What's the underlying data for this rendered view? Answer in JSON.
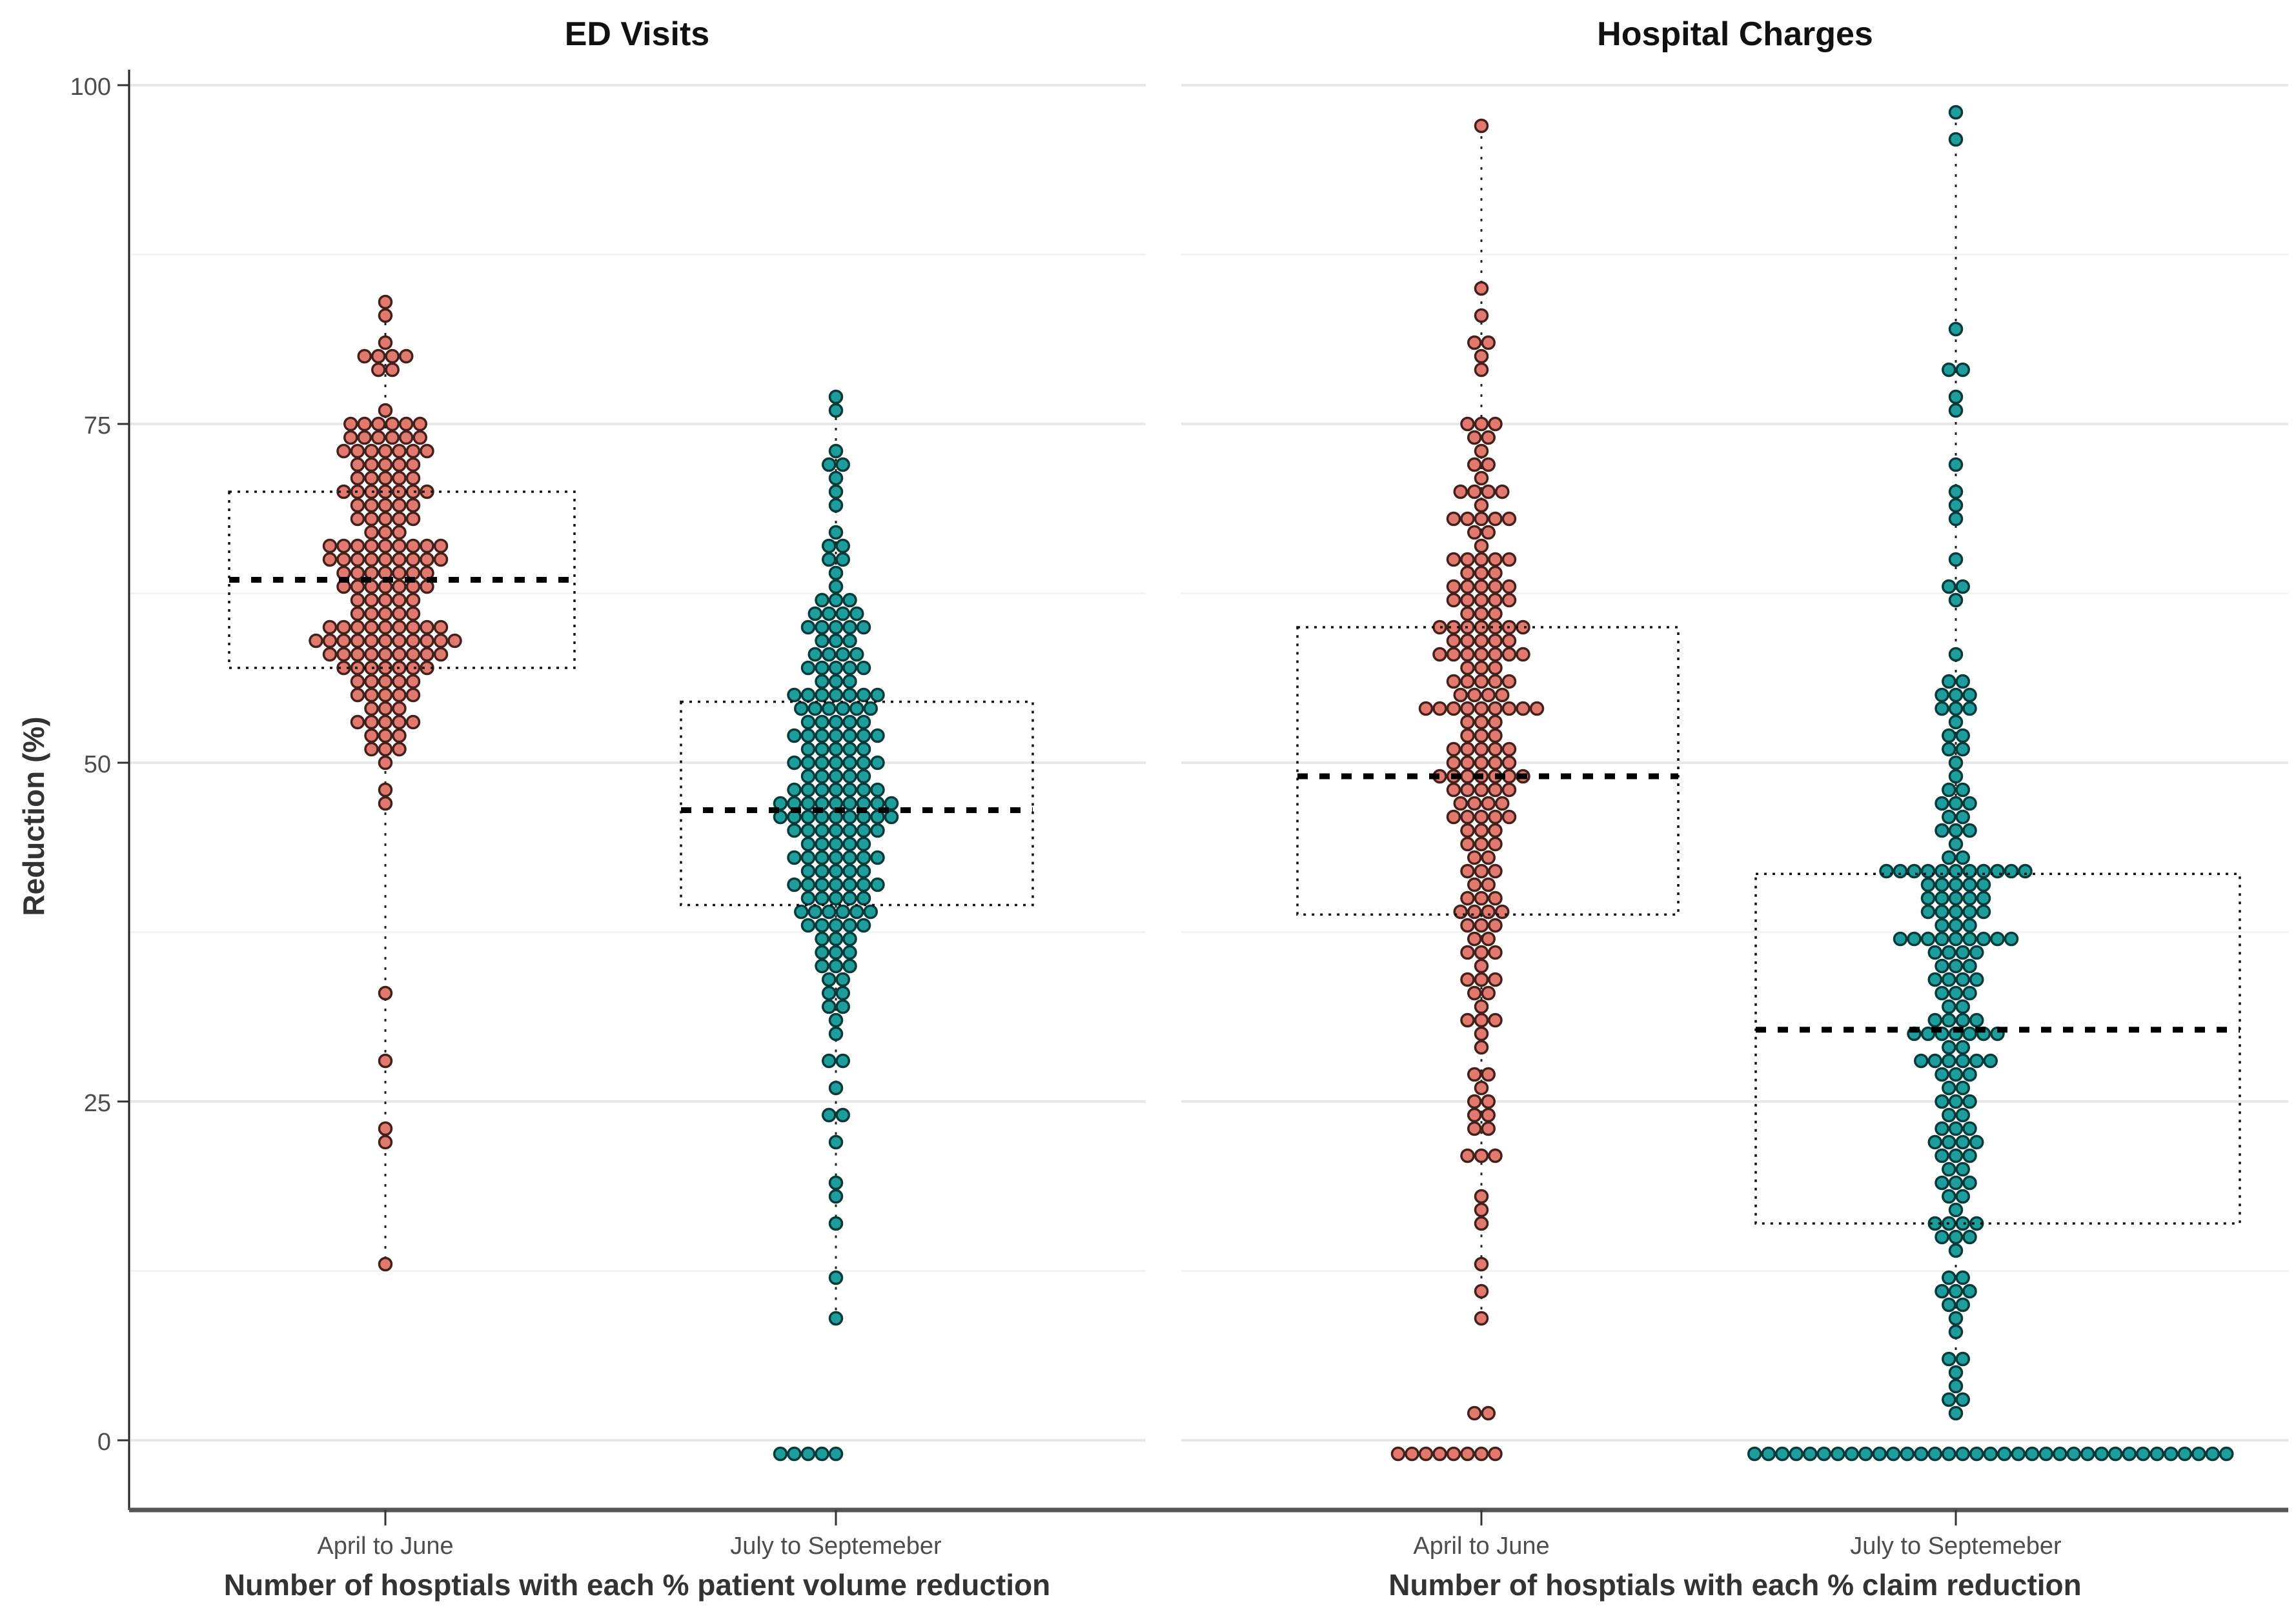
{
  "chart_data": {
    "type": "scatter",
    "subtype": "stacked-dotplot-with-boxplot",
    "y_axis": {
      "label": "Reduction (%)",
      "ticks": [
        "0",
        "25",
        "50",
        "75",
        "100"
      ],
      "tick_values": [
        0,
        25,
        50,
        75,
        100
      ],
      "minor_gridlines": [
        12.5,
        37.5,
        62.5,
        87.5
      ],
      "range": [
        -6,
        104
      ],
      "grid": "on"
    },
    "colors": {
      "april_fill": "#E2796E",
      "april_stroke": "#42201C",
      "july_fill": "#1D9E9C",
      "july_stroke": "#073A38",
      "box_stroke": "#111111",
      "median_stroke": "#000000",
      "axis_line": "#555555",
      "major_grid": "#e8e8e8",
      "minor_grid": "#f3f3f3"
    },
    "panels": [
      {
        "title": "ED Visits",
        "x_label": "Number of hosptials with each % patient volume reduction",
        "groups": [
          {
            "label": "April to June",
            "fill": "#E2796E",
            "stroke": "#42201C",
            "box": {
              "q1": 57,
              "median": 63.5,
              "q3": 70
            },
            "whisker": {
              "min": 13,
              "max": 84
            },
            "rows": [
              [
                84,
                1
              ],
              [
                83,
                1
              ],
              [
                81,
                1
              ],
              [
                80,
                4
              ],
              [
                79,
                2
              ],
              [
                76,
                1
              ],
              [
                75,
                6
              ],
              [
                74,
                6
              ],
              [
                73,
                7
              ],
              [
                72,
                5
              ],
              [
                71,
                5
              ],
              [
                70,
                7
              ],
              [
                69,
                5
              ],
              [
                68,
                5
              ],
              [
                67,
                3
              ],
              [
                66,
                9
              ],
              [
                65,
                9
              ],
              [
                64,
                7
              ],
              [
                63,
                7
              ],
              [
                62,
                5
              ],
              [
                61,
                5
              ],
              [
                60,
                9
              ],
              [
                59,
                11
              ],
              [
                58,
                9
              ],
              [
                57,
                7
              ],
              [
                56,
                5
              ],
              [
                55,
                5
              ],
              [
                54,
                3
              ],
              [
                53,
                5
              ],
              [
                52,
                3
              ],
              [
                51,
                3
              ],
              [
                50,
                1
              ],
              [
                48,
                1
              ],
              [
                47,
                1
              ],
              [
                33,
                1
              ],
              [
                28,
                1
              ],
              [
                23,
                1
              ],
              [
                22,
                1
              ],
              [
                13,
                1
              ]
            ]
          },
          {
            "label": "July to Septemeber",
            "fill": "#1D9E9C",
            "stroke": "#073A38",
            "box": {
              "q1": 39.5,
              "median": 46.5,
              "q3": 54.5
            },
            "whisker": {
              "min": 9,
              "max": 77
            },
            "rows": [
              [
                77,
                1
              ],
              [
                76,
                1
              ],
              [
                73,
                1
              ],
              [
                72,
                2
              ],
              [
                71,
                1
              ],
              [
                70,
                1
              ],
              [
                69,
                1
              ],
              [
                67,
                1
              ],
              [
                66,
                2
              ],
              [
                65,
                2
              ],
              [
                64,
                1
              ],
              [
                63,
                1
              ],
              [
                62,
                3
              ],
              [
                61,
                4
              ],
              [
                60,
                5
              ],
              [
                59,
                3
              ],
              [
                58,
                4
              ],
              [
                57,
                5
              ],
              [
                56,
                3
              ],
              [
                55,
                7
              ],
              [
                54,
                6
              ],
              [
                53,
                5
              ],
              [
                52,
                7
              ],
              [
                51,
                5
              ],
              [
                50,
                7
              ],
              [
                49,
                5
              ],
              [
                48,
                7
              ],
              [
                47,
                9
              ],
              [
                46,
                9
              ],
              [
                45,
                7
              ],
              [
                44,
                5
              ],
              [
                43,
                7
              ],
              [
                42,
                5
              ],
              [
                41,
                7
              ],
              [
                40,
                5
              ],
              [
                39,
                6
              ],
              [
                38,
                5
              ],
              [
                37,
                3
              ],
              [
                36,
                3
              ],
              [
                35,
                3
              ],
              [
                34,
                2
              ],
              [
                33,
                2
              ],
              [
                32,
                2
              ],
              [
                31,
                1
              ],
              [
                30,
                1
              ],
              [
                28,
                2
              ],
              [
                26,
                1
              ],
              [
                24,
                2
              ],
              [
                22,
                1
              ],
              [
                19,
                1
              ],
              [
                18,
                1
              ],
              [
                16,
                1
              ],
              [
                12,
                1
              ],
              [
                9,
                1
              ],
              [
                -1,
                5,
                -2
              ]
            ]
          }
        ]
      },
      {
        "title": "Hospital Charges",
        "x_label": "Number of hosptials with each % claim reduction",
        "groups": [
          {
            "label": "April to June",
            "fill": "#E2796E",
            "stroke": "#42201C",
            "box": {
              "q1": 38.8,
              "median": 49,
              "q3": 60
            },
            "whisker": {
              "min": 9,
              "max": 97
            },
            "rows": [
              [
                97,
                1
              ],
              [
                85,
                1
              ],
              [
                83,
                1
              ],
              [
                81,
                2
              ],
              [
                80,
                1
              ],
              [
                79,
                1
              ],
              [
                75,
                3
              ],
              [
                74,
                2
              ],
              [
                73,
                1
              ],
              [
                72,
                2
              ],
              [
                71,
                1
              ],
              [
                70,
                4
              ],
              [
                69,
                1
              ],
              [
                68,
                5
              ],
              [
                67,
                2
              ],
              [
                66,
                1
              ],
              [
                65,
                5
              ],
              [
                64,
                3
              ],
              [
                63,
                5
              ],
              [
                62,
                5
              ],
              [
                61,
                3
              ],
              [
                60,
                7
              ],
              [
                59,
                5
              ],
              [
                58,
                7
              ],
              [
                57,
                3
              ],
              [
                56,
                5
              ],
              [
                55,
                4
              ],
              [
                54,
                9
              ],
              [
                53,
                3
              ],
              [
                52,
                3
              ],
              [
                51,
                5
              ],
              [
                50,
                5
              ],
              [
                49,
                7
              ],
              [
                48,
                5
              ],
              [
                47,
                4
              ],
              [
                46,
                5
              ],
              [
                45,
                3
              ],
              [
                44,
                3
              ],
              [
                43,
                2
              ],
              [
                42,
                3
              ],
              [
                41,
                2
              ],
              [
                40,
                3
              ],
              [
                39,
                4
              ],
              [
                38,
                3
              ],
              [
                37,
                2
              ],
              [
                36,
                3
              ],
              [
                35,
                1
              ],
              [
                34,
                3
              ],
              [
                33,
                2
              ],
              [
                32,
                1
              ],
              [
                31,
                3
              ],
              [
                30,
                1
              ],
              [
                29,
                1
              ],
              [
                27,
                2
              ],
              [
                26,
                1
              ],
              [
                25,
                2
              ],
              [
                24,
                2
              ],
              [
                23,
                2
              ],
              [
                21,
                3
              ],
              [
                18,
                1
              ],
              [
                17,
                1
              ],
              [
                16,
                1
              ],
              [
                13,
                1
              ],
              [
                11,
                1
              ],
              [
                9,
                1
              ],
              [
                2,
                2
              ],
              [
                -1,
                8,
                -2.5
              ]
            ]
          },
          {
            "label": "July to Septemeber",
            "fill": "#1D9E9C",
            "stroke": "#073A38",
            "box": {
              "q1": 16,
              "median": 30.3,
              "q3": 41.8
            },
            "whisker": {
              "min": 2,
              "max": 98
            },
            "rows": [
              [
                98,
                1
              ],
              [
                96,
                1
              ],
              [
                82,
                1
              ],
              [
                79,
                2
              ],
              [
                77,
                1
              ],
              [
                76,
                1
              ],
              [
                72,
                1
              ],
              [
                70,
                1
              ],
              [
                69,
                1
              ],
              [
                68,
                1
              ],
              [
                65,
                1
              ],
              [
                63,
                2
              ],
              [
                62,
                1
              ],
              [
                58,
                1
              ],
              [
                56,
                2
              ],
              [
                55,
                3
              ],
              [
                54,
                3
              ],
              [
                53,
                1
              ],
              [
                52,
                2
              ],
              [
                51,
                2
              ],
              [
                50,
                1
              ],
              [
                49,
                1
              ],
              [
                48,
                2
              ],
              [
                47,
                3
              ],
              [
                46,
                2
              ],
              [
                45,
                3
              ],
              [
                44,
                1
              ],
              [
                43,
                2
              ],
              [
                42,
                11
              ],
              [
                41,
                5
              ],
              [
                40,
                5
              ],
              [
                39,
                5
              ],
              [
                38,
                3
              ],
              [
                37,
                9
              ],
              [
                36,
                4
              ],
              [
                35,
                3
              ],
              [
                34,
                4
              ],
              [
                33,
                3
              ],
              [
                32,
                2
              ],
              [
                31,
                4
              ],
              [
                30,
                7
              ],
              [
                29,
                2
              ],
              [
                28,
                6
              ],
              [
                27,
                3
              ],
              [
                26,
                2
              ],
              [
                25,
                3
              ],
              [
                24,
                2
              ],
              [
                23,
                3
              ],
              [
                22,
                4
              ],
              [
                21,
                3
              ],
              [
                20,
                2
              ],
              [
                19,
                3
              ],
              [
                18,
                2
              ],
              [
                17,
                1
              ],
              [
                16,
                4
              ],
              [
                15,
                3
              ],
              [
                14,
                1
              ],
              [
                12,
                2
              ],
              [
                11,
                3
              ],
              [
                10,
                2
              ],
              [
                9,
                1
              ],
              [
                8,
                1
              ],
              [
                6,
                2
              ],
              [
                5,
                1
              ],
              [
                4,
                1
              ],
              [
                3,
                2
              ],
              [
                2,
                1
              ],
              [
                -1,
                35,
                2.5
              ]
            ]
          }
        ]
      }
    ]
  }
}
